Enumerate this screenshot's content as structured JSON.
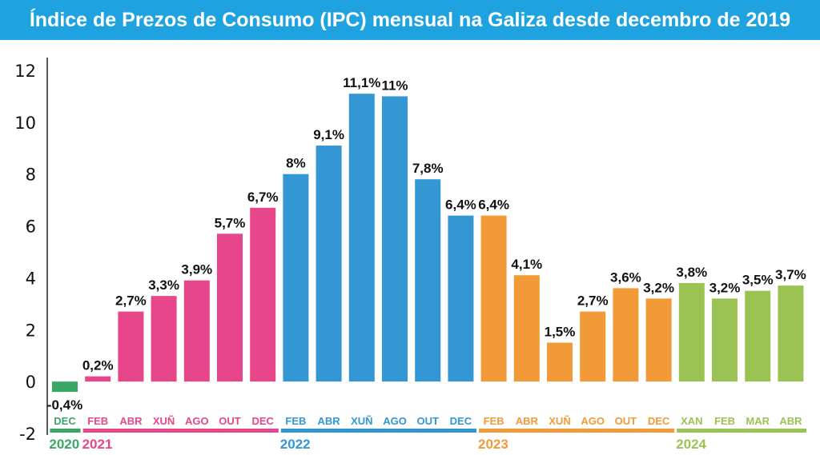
{
  "chart_data": {
    "type": "bar",
    "title": "Índice de Prezos de Consumo (IPC) mensual na Galiza desde decembro de 2019",
    "ylim": [
      -2,
      12
    ],
    "yticks": [
      -2,
      0,
      2,
      4,
      6,
      8,
      10,
      12
    ],
    "grid": false,
    "legend": "none",
    "groups": [
      {
        "year": "2020",
        "color": "#3aa865",
        "months": [
          "DEC"
        ],
        "values": [
          -0.4
        ],
        "labels": [
          "-0,4%"
        ]
      },
      {
        "year": "2021",
        "color": "#e8468a",
        "months": [
          "FEB",
          "ABR",
          "XUÑ",
          "AGO",
          "OUT",
          "DEC"
        ],
        "values": [
          0.2,
          2.7,
          3.3,
          3.9,
          5.7,
          6.7
        ],
        "labels": [
          "0,2%",
          "2,7%",
          "3,3%",
          "3,9%",
          "5,7%",
          "6,7%"
        ]
      },
      {
        "year": "2022",
        "color": "#3297d3",
        "months": [
          "FEB",
          "ABR",
          "XUÑ",
          "AGO",
          "OUT",
          "DEC"
        ],
        "values": [
          8,
          9.1,
          11.1,
          11,
          7.8,
          6.4
        ],
        "labels": [
          "8%",
          "9,1%",
          "11,1%",
          "11%",
          "7,8%",
          "6,4%"
        ]
      },
      {
        "year": "2023",
        "color": "#f29a38",
        "months": [
          "FEB",
          "ABR",
          "XUÑ",
          "AGO",
          "OUT",
          "DEC"
        ],
        "values": [
          6.4,
          4.1,
          1.5,
          2.7,
          3.6,
          3.2
        ],
        "labels": [
          "6,4%",
          "4,1%",
          "1,5%",
          "2,7%",
          "3,6%",
          "3,2%"
        ]
      },
      {
        "year": "2024",
        "color": "#9bc353",
        "months": [
          "XAN",
          "FEB",
          "MAR",
          "ABR"
        ],
        "values": [
          3.8,
          3.2,
          3.5,
          3.7
        ],
        "labels": [
          "3,8%",
          "3,2%",
          "3,5%",
          "3,7%"
        ]
      }
    ]
  }
}
